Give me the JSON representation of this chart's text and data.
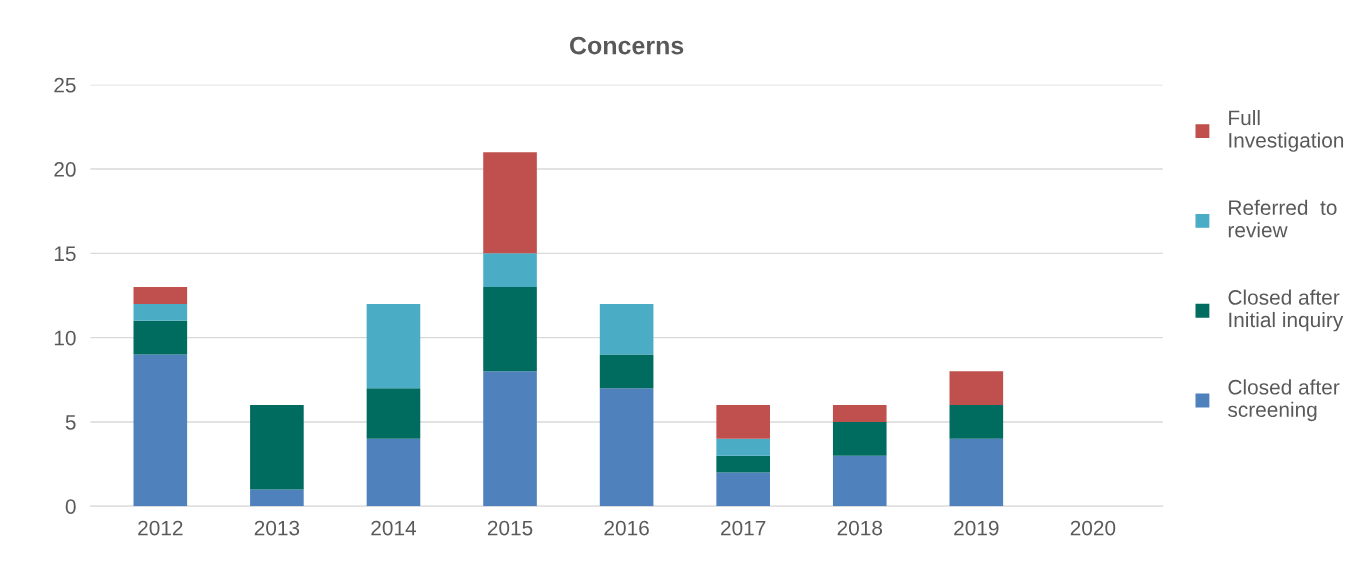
{
  "chart_data": {
    "type": "bar",
    "title": "Concerns",
    "stacked": true,
    "categories": [
      "2012",
      "2013",
      "2014",
      "2015",
      "2016",
      "2017",
      "2018",
      "2019",
      "2020"
    ],
    "series": [
      {
        "name": "Closed after\nscreening",
        "color": "#4f81bd",
        "values": [
          9,
          1,
          4,
          8,
          7,
          2,
          3,
          4,
          0
        ]
      },
      {
        "name": "Closed after\nInitial inquiry",
        "color": "#006b5f",
        "values": [
          2,
          5,
          3,
          5,
          2,
          1,
          2,
          2,
          0
        ]
      },
      {
        "name": "Referred  to\nreview",
        "color": "#4bacc6",
        "values": [
          1,
          0,
          5,
          2,
          3,
          1,
          0,
          0,
          0
        ]
      },
      {
        "name": "Full\nInvestigation",
        "color": "#c0504d",
        "values": [
          1,
          0,
          0,
          6,
          0,
          2,
          1,
          2,
          0
        ]
      }
    ],
    "ylim": [
      0,
      25
    ],
    "yticks": [
      0,
      5,
      10,
      15,
      20,
      25
    ],
    "grid": "y",
    "legend": "right"
  }
}
